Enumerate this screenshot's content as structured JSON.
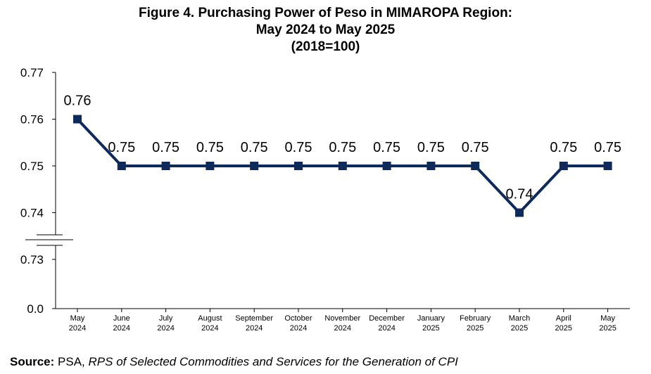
{
  "title_lines": [
    "Figure 4. Purchasing Power of Peso in MIMAROPA Region:",
    "May 2024 to May 2025",
    "(2018=100)"
  ],
  "source": {
    "label": "Source:",
    "org": "PSA,",
    "text": "RPS of Selected Commodities and Services for the Generation of CPI"
  },
  "chart_data": {
    "type": "line",
    "title": "Figure 4. Purchasing Power of Peso in MIMAROPA Region: May 2024 to May 2025 (2018=100)",
    "categories": [
      [
        "May",
        "2024"
      ],
      [
        "June",
        "2024"
      ],
      [
        "July",
        "2024"
      ],
      [
        "August",
        "2024"
      ],
      [
        "September",
        "2024"
      ],
      [
        "October",
        "2024"
      ],
      [
        "November",
        "2024"
      ],
      [
        "December",
        "2024"
      ],
      [
        "January",
        "2025"
      ],
      [
        "February",
        "2025"
      ],
      [
        "March",
        "2025"
      ],
      [
        "April",
        "2025"
      ],
      [
        "May",
        "2025"
      ]
    ],
    "values": [
      0.76,
      0.75,
      0.75,
      0.75,
      0.75,
      0.75,
      0.75,
      0.75,
      0.75,
      0.75,
      0.74,
      0.75,
      0.75
    ],
    "data_labels": [
      "0.76",
      "0.75",
      "0.75",
      "0.75",
      "0.75",
      "0.75",
      "0.75",
      "0.75",
      "0.75",
      "0.75",
      "0.74",
      "0.75",
      "0.75"
    ],
    "y_ticks": [
      {
        "value": 0.77,
        "label": "0.77"
      },
      {
        "value": 0.76,
        "label": "0.76"
      },
      {
        "value": 0.75,
        "label": "0.75"
      },
      {
        "value": 0.74,
        "label": "0.74"
      },
      {
        "value": 0.73,
        "label": "0.73"
      },
      {
        "value": 0.0,
        "label": "0.0"
      }
    ],
    "y_axis_break": true,
    "grid": false,
    "legend": "none",
    "series_color": "#0d2a5a"
  }
}
